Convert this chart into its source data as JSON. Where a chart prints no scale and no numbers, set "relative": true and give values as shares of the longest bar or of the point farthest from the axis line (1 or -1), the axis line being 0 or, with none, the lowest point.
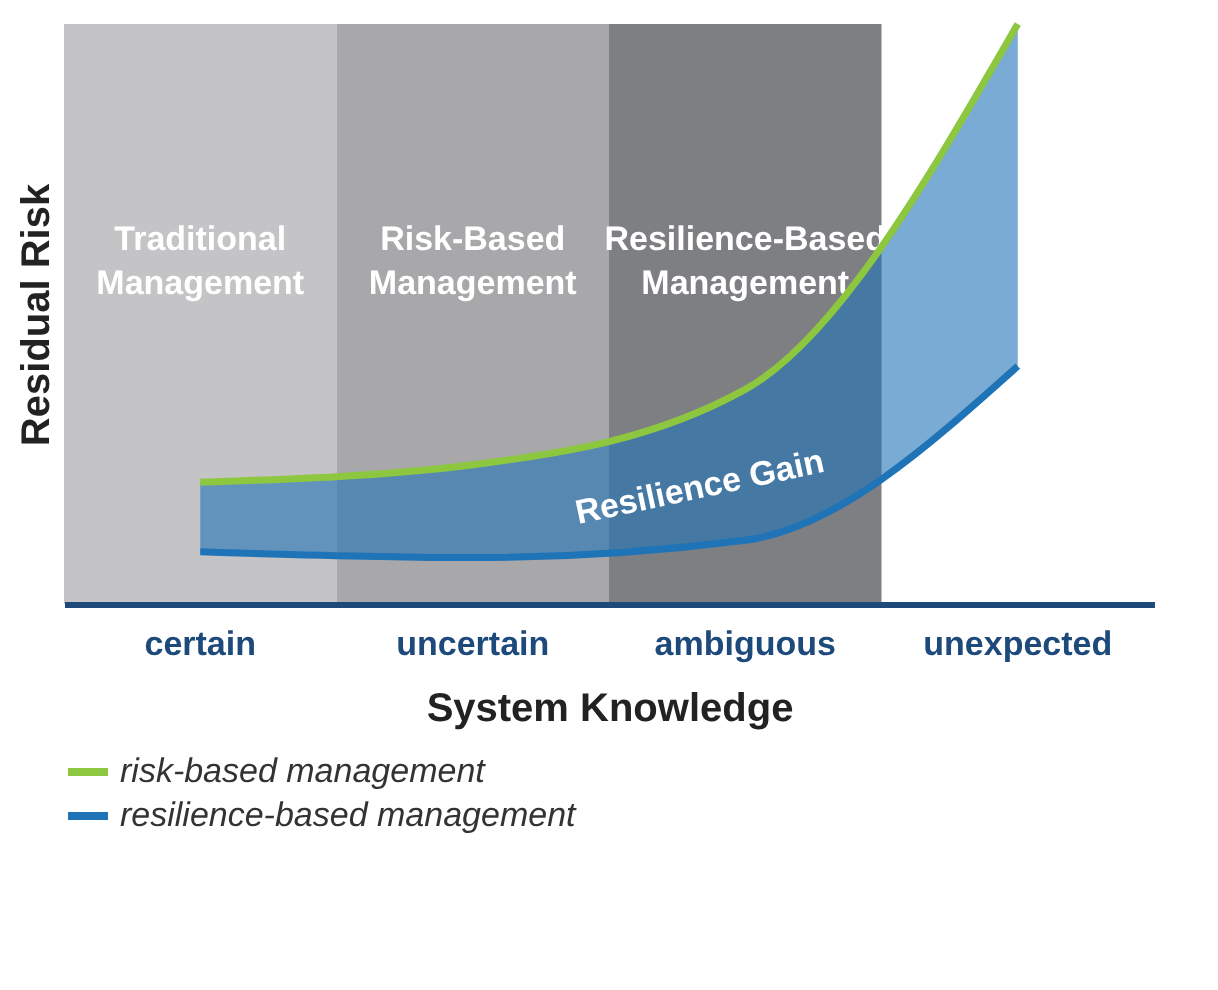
{
  "chart_data": {
    "type": "line",
    "relative": true,
    "xlabel": "System Knowledge",
    "ylabel": "Residual Risk",
    "categories": [
      "certain",
      "uncertain",
      "ambiguous",
      "unexpected"
    ],
    "series": [
      {
        "name": "risk-based management",
        "color": "#8dc63f",
        "values": [
          0.21,
          0.24,
          0.37,
          1
        ]
      },
      {
        "name": "resilience-based management",
        "color": "#1f73b7",
        "values": [
          0.09,
          0.08,
          0.11,
          0.41
        ],
        "lower": [
          0.09,
          0.08,
          0.11,
          0.41
        ],
        "upper": [
          0.21,
          0.24,
          0.37,
          1
        ]
      }
    ],
    "bands": [
      {
        "axis": "x",
        "from": "certain",
        "to": "certain",
        "label": "Traditional Management",
        "color": "#c4c4c6"
      },
      {
        "axis": "x",
        "from": "uncertain",
        "to": "uncertain",
        "label": "Risk-Based Management",
        "color": "#a8a8ab"
      },
      {
        "axis": "x",
        "from": "ambiguous",
        "to": "ambiguous",
        "label": "Resilience-Based Management",
        "color": "#7e7f82"
      }
    ],
    "annotations": [
      "Resilience Gain"
    ],
    "legend": "bottom",
    "grid": false
  }
}
